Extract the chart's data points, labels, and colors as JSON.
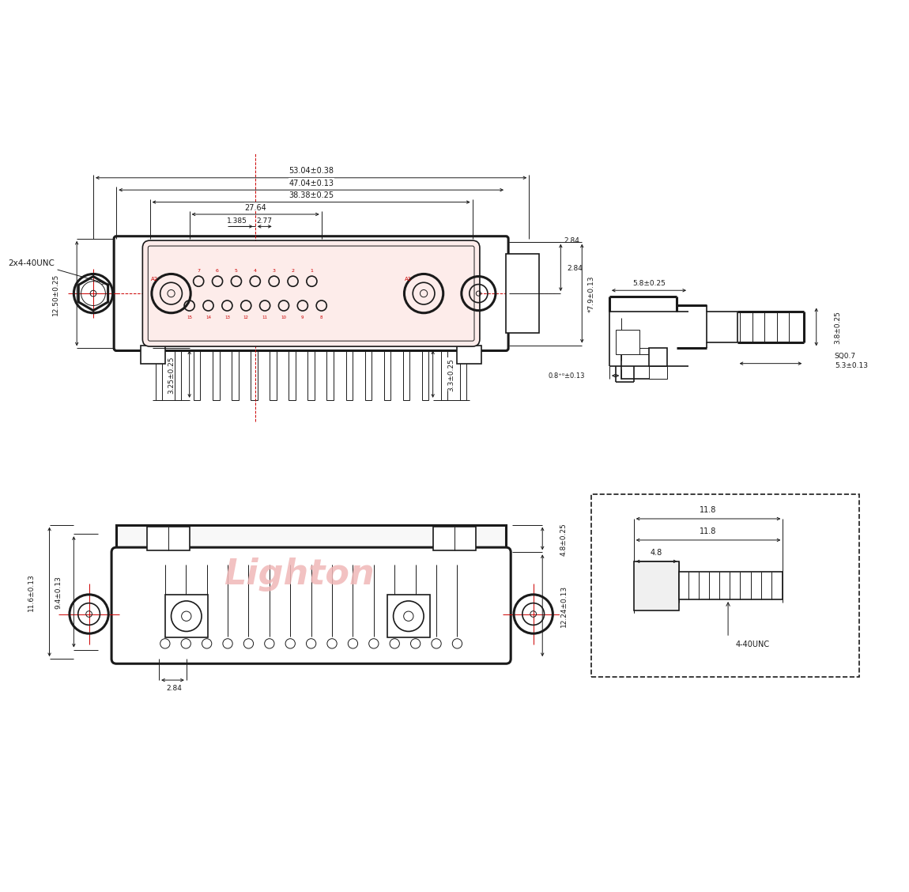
{
  "bg_color": "#ffffff",
  "line_color": "#1a1a1a",
  "red_color": "#cc0000",
  "watermark_color": "#f0b8b8",
  "watermark_text": "Lighton",
  "lw": 1.2,
  "lw_thick": 2.2,
  "lw_thin": 0.7,
  "notes": {
    "dim_53": "53.04±0.38",
    "dim_47": "47.04±0.13",
    "dim_38": "38.38±0.25",
    "dim_27": "27.64",
    "dim_1385": "1.385",
    "dim_277": "2.77",
    "dim_284_top": "2.84",
    "dim_79": "*7.9±0.13",
    "dim_1250": "12.50±0.25",
    "dim_325": "3.25±0.25",
    "dim_33": "3.3±0.25",
    "dim_2x4_40unc": "2x4-40UNC",
    "dim_58": "5.8±0.25",
    "dim_38side": "3.8±0.25",
    "dim_08": "0.8⁺⁰±0.13",
    "dim_sq07": "SQ0.7",
    "dim_53side": "5.3±0.13",
    "dim_48": "4.8±0.25",
    "dim_116": "11.6±0.13",
    "dim_94": "9.4±0.13",
    "dim_1224": "12.24±0.13",
    "dim_284_bot": "2.84",
    "dim_118_box": "11.8",
    "dim_48_box": "4.8",
    "dim_440unc": "4-40UNC"
  }
}
